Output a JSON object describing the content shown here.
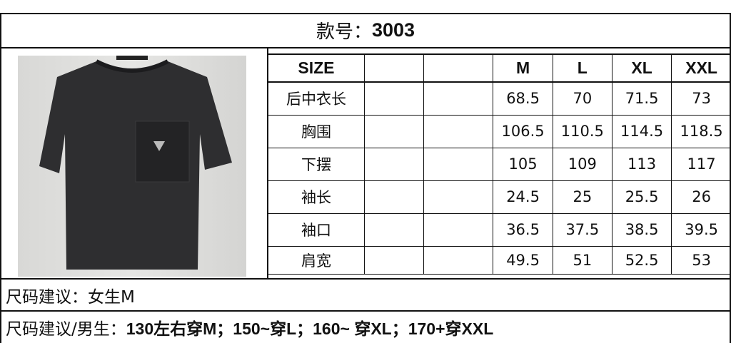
{
  "title": {
    "label": "款号：",
    "style_no": "3003"
  },
  "photo": {
    "description_icon": "black-tshirt-with-pocket"
  },
  "table": {
    "headers": [
      "SIZE",
      "",
      "",
      "M",
      "L",
      "XL",
      "XXL"
    ],
    "rows": [
      {
        "name": "后中衣长",
        "values": [
          "68.5",
          "70",
          "71.5",
          "73"
        ]
      },
      {
        "name": "胸围",
        "values": [
          "106.5",
          "110.5",
          "114.5",
          "118.5"
        ]
      },
      {
        "name": "下摆",
        "values": [
          "105",
          "109",
          "113",
          "117"
        ]
      },
      {
        "name": "袖长",
        "values": [
          "24.5",
          "25",
          "25.5",
          "26"
        ]
      },
      {
        "name": "袖口",
        "values": [
          "36.5",
          "37.5",
          "38.5",
          "39.5"
        ]
      },
      {
        "name": "肩宽",
        "values": [
          "49.5",
          "51",
          "52.5",
          "53"
        ]
      }
    ]
  },
  "notes": {
    "female": "尺码建议：女生M",
    "male_label": "尺码建议/男生：",
    "male_text": "130左右穿M；150~穿L；160~ 穿XL；170+穿XXL"
  }
}
